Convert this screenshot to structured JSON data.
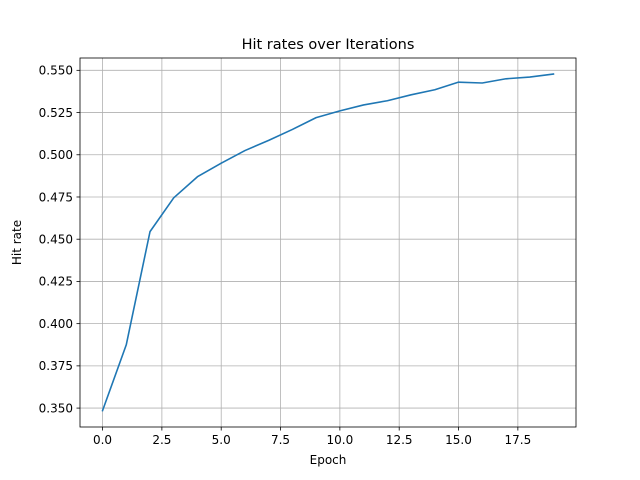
{
  "chart_data": {
    "type": "line",
    "title": "Hit rates over Iterations",
    "xlabel": "Epoch",
    "ylabel": "Hit rate",
    "xlim": [
      -0.95,
      19.95
    ],
    "ylim": [
      0.3388,
      0.5573
    ],
    "xticks": [
      0,
      2.5,
      5,
      7.5,
      10,
      12.5,
      15,
      17.5
    ],
    "xtick_labels": [
      "0.0",
      "2.5",
      "5.0",
      "7.5",
      "10.0",
      "12.5",
      "15.0",
      "17.5"
    ],
    "yticks": [
      0.35,
      0.375,
      0.4,
      0.425,
      0.45,
      0.475,
      0.5,
      0.525,
      0.55
    ],
    "ytick_labels": [
      "0.350",
      "0.375",
      "0.400",
      "0.425",
      "0.450",
      "0.475",
      "0.500",
      "0.525",
      "0.550"
    ],
    "grid": true,
    "color": "#1f77b4",
    "series": [
      {
        "x": [
          0,
          1,
          2,
          3,
          4,
          5,
          6,
          7,
          8,
          9,
          10,
          11,
          12,
          13,
          14,
          15,
          16,
          17,
          18,
          19
        ],
        "values": [
          0.3485,
          0.3875,
          0.4545,
          0.4745,
          0.487,
          0.495,
          0.5025,
          0.5085,
          0.515,
          0.522,
          0.526,
          0.5295,
          0.532,
          0.5355,
          0.5385,
          0.543,
          0.5425,
          0.545,
          0.546,
          0.5478
        ]
      }
    ]
  }
}
